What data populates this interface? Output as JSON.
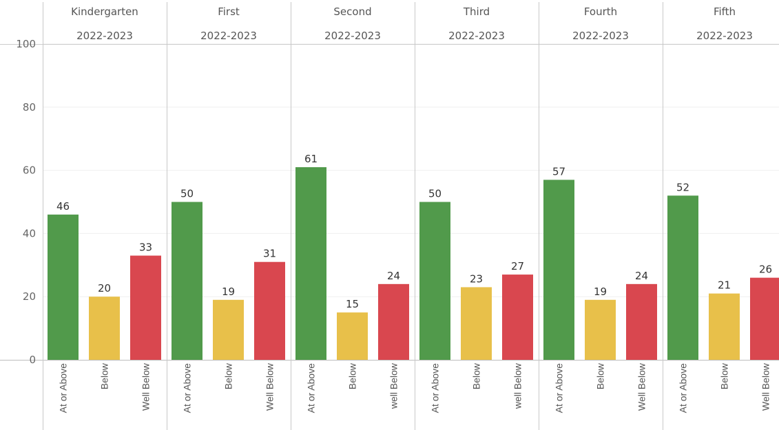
{
  "chart_data": {
    "type": "bar",
    "ylim": [
      0,
      100
    ],
    "yticks": [
      0,
      20,
      40,
      60,
      80,
      100
    ],
    "grid": true,
    "categories": [
      "At or Above",
      "Below",
      "Well Below"
    ],
    "colors": {
      "At or Above": "#519a4b",
      "Below": "#e8c04a",
      "Well Below": "#d9474f"
    },
    "panels": [
      {
        "grade": "Kindergarten",
        "year": "2022-2023",
        "labels": [
          "At or Above",
          "Below",
          "Well Below"
        ],
        "values": [
          46,
          20,
          33
        ]
      },
      {
        "grade": "First",
        "year": "2022-2023",
        "labels": [
          "At or Above",
          "Below",
          "Well Below"
        ],
        "values": [
          50,
          19,
          31
        ]
      },
      {
        "grade": "Second",
        "year": "2022-2023",
        "labels": [
          "At or Above",
          "Below",
          "well Below"
        ],
        "values": [
          61,
          15,
          24
        ]
      },
      {
        "grade": "Third",
        "year": "2022-2023",
        "labels": [
          "At or Above",
          "Below",
          "well Below"
        ],
        "values": [
          50,
          23,
          27
        ]
      },
      {
        "grade": "Fourth",
        "year": "2022-2023",
        "labels": [
          "At or Above",
          "Below",
          "Well Below"
        ],
        "values": [
          57,
          19,
          24
        ]
      },
      {
        "grade": "Fifth",
        "year": "2022-2023",
        "labels": [
          "At or Above",
          "Below",
          "Well Below"
        ],
        "values": [
          52,
          21,
          26
        ]
      }
    ]
  }
}
